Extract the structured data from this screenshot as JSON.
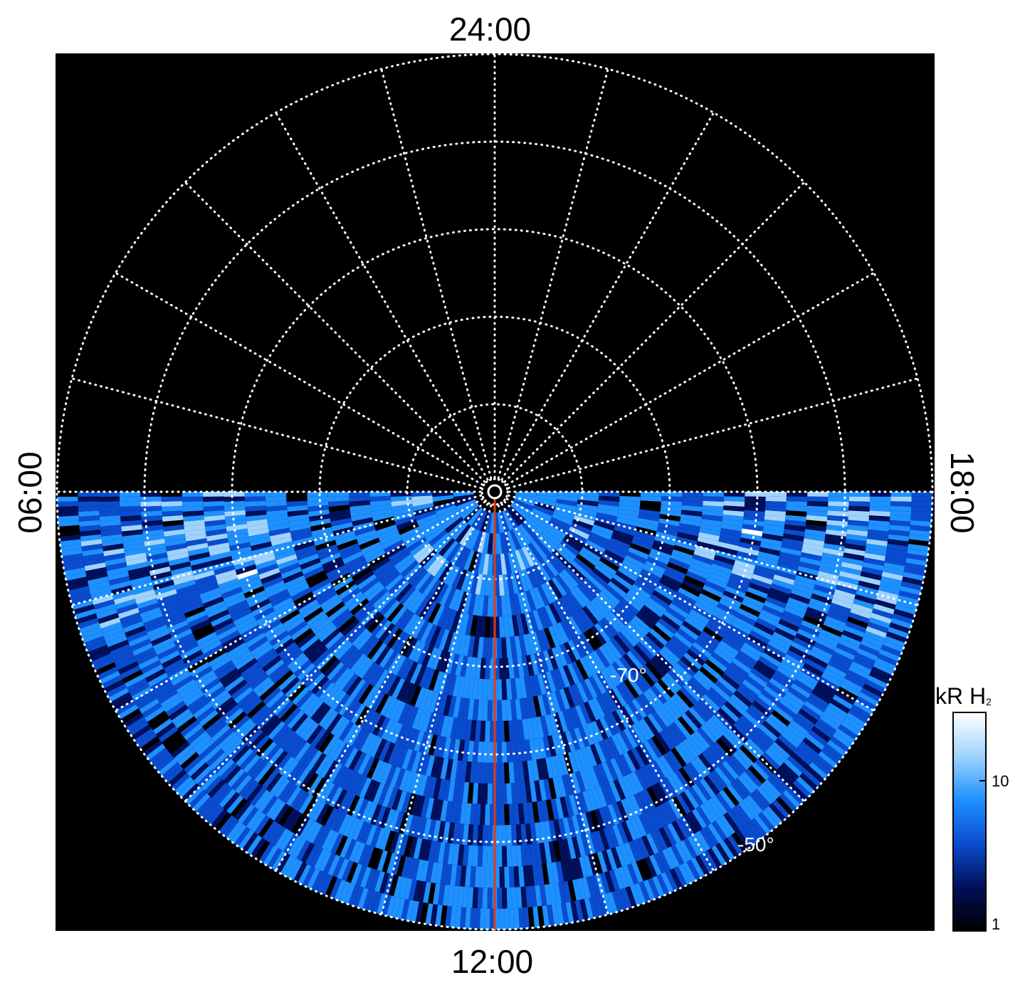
{
  "chart_data": {
    "type": "heatmap",
    "projection": "polar",
    "description_labels": {
      "top": "24:00",
      "bottom": "12:00",
      "left": "06:00",
      "right": "18:00"
    },
    "latitude_labels": [
      "-70°",
      "-50°"
    ],
    "latitude_circles_deg": [
      -90,
      -80,
      -70,
      -60,
      -50,
      -40
    ],
    "local_time_meridians_hours": [
      0,
      1,
      2,
      3,
      4,
      5,
      6,
      7,
      8,
      9,
      10,
      11,
      12,
      13,
      14,
      15,
      16,
      17,
      18,
      19,
      20,
      21,
      22,
      23
    ],
    "colorbar": {
      "title": "kR H",
      "title_subscript": "2",
      "scale": "log",
      "range": [
        1,
        30
      ],
      "tick_labels": [
        "10",
        "1"
      ],
      "colors": [
        "#000000",
        "#00105a",
        "#0a4ccf",
        "#1e90ff",
        "#9fd3ff",
        "#ffffff"
      ]
    },
    "grid": "dotted white",
    "highlight_meridian": {
      "local_time": "12:00",
      "color": "#e03a12"
    },
    "coverage": "observed data in the dayside hemisphere (local times 06:00–18:00 via 12:00)"
  }
}
